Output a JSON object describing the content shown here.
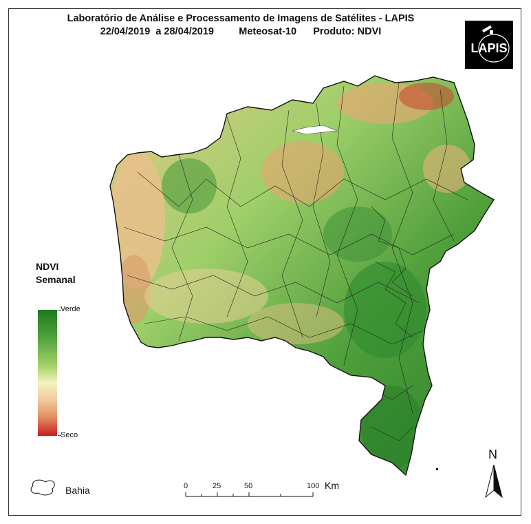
{
  "title": {
    "line1": "Laboratório de Análise e Processamento de Imagens de Satélites - LAPIS",
    "line2": "22/04/2019  a 28/04/2019         Meteosat-10      Produto: NDVI"
  },
  "logo": {
    "text": "LAPIS"
  },
  "legend": {
    "title_line1": "NDVI",
    "title_line2": "Semanal",
    "top_label": "Verde",
    "bottom_label": "Seco",
    "colors": [
      "#1e7a1e",
      "#4fa33a",
      "#a7d36b",
      "#f5f2bf",
      "#f2c79c",
      "#e08a5e",
      "#c81e1e"
    ]
  },
  "boundary_legend": {
    "label": "Bahia"
  },
  "scale_bar": {
    "ticks": [
      "0",
      "25",
      "50",
      "100"
    ],
    "unit": "Km"
  },
  "north_arrow": {
    "label": "N"
  }
}
